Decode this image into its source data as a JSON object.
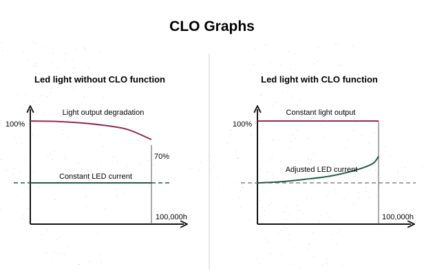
{
  "page": {
    "title": "CLO Graphs"
  },
  "colors": {
    "light_output": "#8e2a55",
    "led_current": "#1e5a48",
    "axis": "#111111",
    "guide": "#6b6b6b",
    "divider": "#cfcfcf",
    "dots": "#d6d6d6"
  },
  "chart_data": [
    {
      "type": "line",
      "title": "Led light without CLO function",
      "x_end_label": "100,000h",
      "y_top_label": "100%",
      "end_value_label": "70%",
      "grid": false,
      "series": [
        {
          "label": "Light output degradation",
          "role": "light_output",
          "x": [
            0,
            0.2,
            0.4,
            0.6,
            0.8,
            1.0
          ],
          "y": [
            100,
            99.4,
            97.2,
            93.2,
            86.5,
            70
          ]
        },
        {
          "label": "Constant LED current",
          "role": "led_current",
          "x": [
            0,
            1.0
          ],
          "y": [
            0,
            0
          ]
        }
      ]
    },
    {
      "type": "line",
      "title": "Led light with CLO function",
      "x_end_label": "100,000h",
      "y_top_label": "100%",
      "grid": false,
      "series": [
        {
          "label": "Constant light output",
          "role": "light_output",
          "x": [
            0,
            1.0
          ],
          "y": [
            100,
            100
          ]
        },
        {
          "label": "Adjusted LED current",
          "role": "led_current",
          "x": [
            0,
            0.2,
            0.4,
            0.6,
            0.8,
            0.95,
            1.0
          ],
          "y": [
            0,
            2,
            6,
            11,
            20,
            31,
            43
          ]
        }
      ]
    }
  ]
}
